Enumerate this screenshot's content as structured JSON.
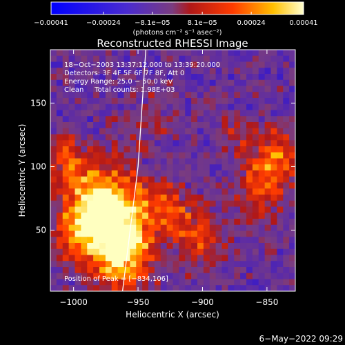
{
  "chart_data": {
    "type": "heatmap",
    "title": "Reconstructed RHESSI Image",
    "xlabel": "Heliocentric X (arcsec)",
    "ylabel": "Heliocentric Y (arcsec)",
    "xlim": [
      -1018,
      -828
    ],
    "ylim": [
      2,
      192
    ],
    "xticks": [
      {
        "value": -1000,
        "label": "−1000"
      },
      {
        "value": -950,
        "label": "−950"
      },
      {
        "value": -900,
        "label": "−900"
      },
      {
        "value": -850,
        "label": "−850"
      }
    ],
    "yticks": [
      {
        "value": 50,
        "label": "50"
      },
      {
        "value": 100,
        "label": "100"
      },
      {
        "value": 150,
        "label": "150"
      }
    ],
    "colorbar": {
      "range": [
        -0.00041,
        0.00041
      ],
      "ticks": [
        {
          "value": -0.00041,
          "label": "−0.00041"
        },
        {
          "value": -0.00024,
          "label": "−0.00024"
        },
        {
          "value": -8.1e-05,
          "label": "−8.1e−05"
        },
        {
          "value": 8.1e-05,
          "label": "8.1e−05"
        },
        {
          "value": 0.00024,
          "label": "0.00024"
        },
        {
          "value": 0.00041,
          "label": "0.00041"
        }
      ],
      "units_label": "(photons cm⁻² s⁻¹ asec⁻²)"
    },
    "annotations": [
      "18−Oct−2003 13:37:12.000 to 13:39:20.000",
      "Detectors: 3F 4F 5F 6F 7F 8F, Att 0",
      "Energy Range: 25.0 − 50.0 keV",
      "Clean     Total counts: 1.98E+03"
    ],
    "peak_label": "Position of Peak = [−834,106]",
    "limb_line": [
      [
        -962,
        2
      ],
      [
        -950,
        100
      ],
      [
        -944,
        192
      ]
    ],
    "colors": {
      "background": "#000000",
      "text": "#ffffff",
      "colormap": [
        "#0000ff",
        "#5a2aa8",
        "#7a3c80",
        "#b01818",
        "#ff3c00",
        "#ffc000",
        "#ffffc0"
      ]
    }
  },
  "footer": {
    "timestamp": "6−May−2022 09:29"
  }
}
